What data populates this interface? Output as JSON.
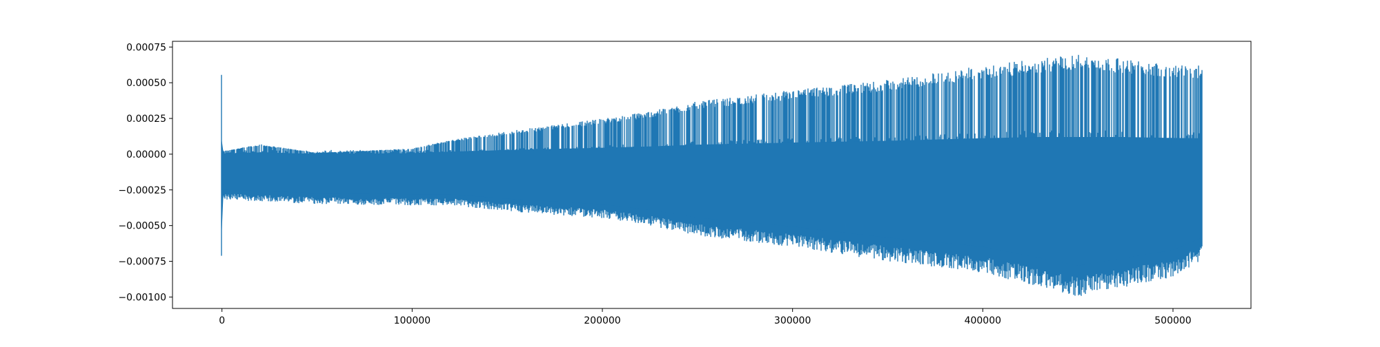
{
  "chart_data": {
    "type": "line",
    "title": "",
    "xlabel": "",
    "ylabel": "",
    "xlim": [
      -26000,
      541000
    ],
    "ylim": [
      -0.00108,
      0.00079
    ],
    "grid": false,
    "legend": "none",
    "x_ticks": [
      {
        "value": 0,
        "label": "0"
      },
      {
        "value": 100000,
        "label": "100000"
      },
      {
        "value": 200000,
        "label": "200000"
      },
      {
        "value": 300000,
        "label": "300000"
      },
      {
        "value": 400000,
        "label": "400000"
      },
      {
        "value": 500000,
        "label": "500000"
      }
    ],
    "y_ticks": [
      {
        "value": 0.00075,
        "label": "0.00075"
      },
      {
        "value": 0.0005,
        "label": "0.00050"
      },
      {
        "value": 0.00025,
        "label": "0.00025"
      },
      {
        "value": 0.0,
        "label": "0.00000"
      },
      {
        "value": -0.00025,
        "label": "−0.00025"
      },
      {
        "value": -0.0005,
        "label": "−0.00050"
      },
      {
        "value": -0.00075,
        "label": "−0.00075"
      },
      {
        "value": -0.001,
        "label": "−0.00100"
      }
    ],
    "series": [
      {
        "color": "#1f77b4",
        "x_range": [
          0,
          515000
        ],
        "envelope": {
          "x": [
            0,
            20000,
            50000,
            100000,
            120000,
            150000,
            200000,
            225000,
            250000,
            300000,
            350000,
            400000,
            450000,
            500000,
            515000
          ],
          "upper": [
            2e-05,
            7e-05,
            1e-05,
            4e-05,
            0.0001,
            0.00016,
            0.00025,
            0.0003,
            0.00037,
            0.00045,
            0.00052,
            0.00062,
            0.0007,
            0.00063,
            0.00062
          ],
          "lower": [
            -0.00032,
            -0.00033,
            -0.00035,
            -0.00036,
            -0.00036,
            -0.0004,
            -0.00045,
            -0.0005,
            -0.00057,
            -0.00065,
            -0.00075,
            -0.00083,
            -0.001,
            -0.00086,
            -0.00075
          ]
        }
      }
    ]
  }
}
